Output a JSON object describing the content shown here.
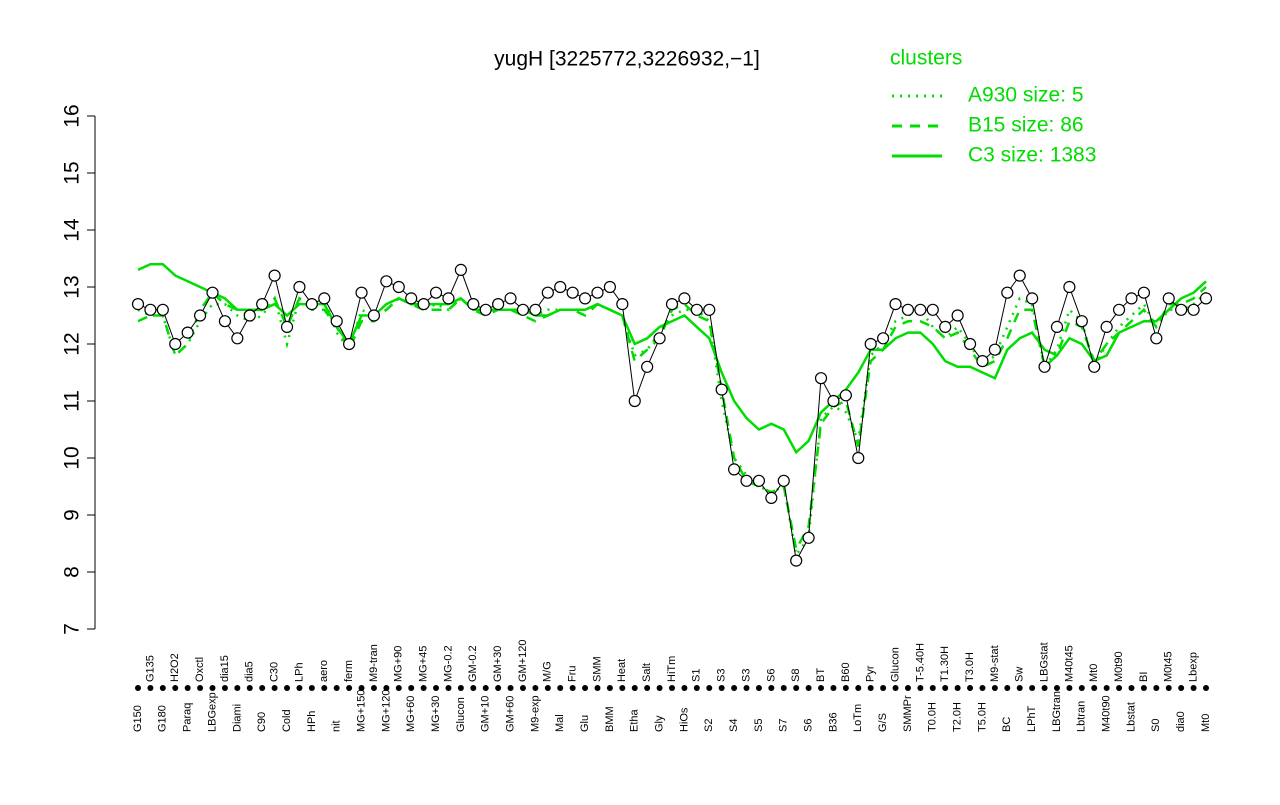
{
  "chart_data": {
    "type": "line",
    "title": "yugH [3225772,3226932,−1]",
    "legend_title": "clusters",
    "legend_position": "top-right",
    "point_color": "#000000",
    "categories": [
      "G150",
      "G135",
      "G180",
      "H2O2",
      "Paraq",
      "Oxctl",
      "LBGexp",
      "dia15",
      "Diami",
      "dia5",
      "C90",
      "C30",
      "Cold",
      "LPh",
      "HPh",
      "aero",
      "nit",
      "ferm",
      "MG+150",
      "M9-tran",
      "MG+120",
      "MG+90",
      "MG+60",
      "MG+45",
      "MG+30",
      "MG-0.2",
      "Glucon",
      "GM-0.2",
      "GM+10",
      "GM+30",
      "GM+60",
      "GM+120",
      "M9-exp",
      "M/G",
      "Mal",
      "Fru",
      "Glu",
      "SMM",
      "BMM",
      "Heat",
      "Etha",
      "Salt",
      "Gly",
      "HiTm",
      "HiOs",
      "S1",
      "S2",
      "S3",
      "S4",
      "S3",
      "S5",
      "S6",
      "S7",
      "S8",
      "S6",
      "BT",
      "B36",
      "B60",
      "LoTm",
      "Pyr",
      "G/S",
      "Glucon",
      "SMMPr",
      "T-5.40H",
      "T0.0H",
      "T1.30H",
      "T2.0H",
      "T3.0H",
      "T5.0H",
      "M9-stat",
      "BC",
      "Sw",
      "LPhT",
      "LBGstat",
      "LBGtran",
      "M40t45",
      "Lbtran",
      "Mt0",
      "M40t90",
      "M0t90",
      "Lbstat",
      "BI",
      "S0",
      "M0t45",
      "dia0",
      "Lbexp",
      "Mt0"
    ],
    "values": [
      12.7,
      12.6,
      12.6,
      12.0,
      12.2,
      12.5,
      12.9,
      12.4,
      12.1,
      12.5,
      12.7,
      13.2,
      12.3,
      13.0,
      12.7,
      12.8,
      12.4,
      12.0,
      12.9,
      12.5,
      13.1,
      13.0,
      12.8,
      12.7,
      12.9,
      12.8,
      13.3,
      12.7,
      12.6,
      12.7,
      12.8,
      12.6,
      12.6,
      12.9,
      13.0,
      12.9,
      12.8,
      12.9,
      13.0,
      12.7,
      11.0,
      11.6,
      12.1,
      12.7,
      12.8,
      12.6,
      12.6,
      11.2,
      9.8,
      9.6,
      9.6,
      9.3,
      9.6,
      8.2,
      8.6,
      11.4,
      11.0,
      11.1,
      10.0,
      12.0,
      12.1,
      12.7,
      12.6,
      12.6,
      12.6,
      12.3,
      12.5,
      12.0,
      11.7,
      11.9,
      12.9,
      13.2,
      12.8,
      11.6,
      12.3,
      13.0,
      12.4,
      11.6,
      12.3,
      12.6,
      12.8,
      12.9,
      12.1,
      12.8,
      12.6,
      12.6,
      12.8
    ],
    "series": [
      {
        "name": "A930 size: 5",
        "color": "#00dd00",
        "style": "dotted",
        "values": [
          12.6,
          12.5,
          12.5,
          11.8,
          12.0,
          12.4,
          12.7,
          12.7,
          12.5,
          12.4,
          12.5,
          12.8,
          12.0,
          12.8,
          12.7,
          12.8,
          12.2,
          11.9,
          12.6,
          12.5,
          12.6,
          12.8,
          12.7,
          12.6,
          12.7,
          12.6,
          12.8,
          12.6,
          12.6,
          12.6,
          12.6,
          12.6,
          12.5,
          12.6,
          12.6,
          12.6,
          12.6,
          12.7,
          12.6,
          12.5,
          11.8,
          11.9,
          12.2,
          12.5,
          12.6,
          12.6,
          12.4,
          11.0,
          10.0,
          9.7,
          9.5,
          9.4,
          9.5,
          8.3,
          8.6,
          10.7,
          10.9,
          10.8,
          10.3,
          11.8,
          12.0,
          12.4,
          12.5,
          12.6,
          12.3,
          12.1,
          12.3,
          12.0,
          11.6,
          11.8,
          12.3,
          12.8,
          12.7,
          11.6,
          11.9,
          12.6,
          12.4,
          11.6,
          12.0,
          12.3,
          12.5,
          12.7,
          12.3,
          12.6,
          12.6,
          12.7,
          12.9
        ]
      },
      {
        "name": "B15 size: 86",
        "color": "#00dd00",
        "style": "dashed",
        "values": [
          12.4,
          12.5,
          12.5,
          11.8,
          12.0,
          12.6,
          12.9,
          12.7,
          12.6,
          12.5,
          12.6,
          12.8,
          12.3,
          12.8,
          12.6,
          12.6,
          12.3,
          11.9,
          12.4,
          12.4,
          12.6,
          12.8,
          12.7,
          12.6,
          12.6,
          12.6,
          12.8,
          12.6,
          12.5,
          12.6,
          12.6,
          12.5,
          12.4,
          12.5,
          12.6,
          12.6,
          12.5,
          12.7,
          12.6,
          12.5,
          11.7,
          11.9,
          12.1,
          12.6,
          12.7,
          12.5,
          12.4,
          11.2,
          10.0,
          9.6,
          9.5,
          9.4,
          9.5,
          8.4,
          8.8,
          10.6,
          10.9,
          11.0,
          10.2,
          11.7,
          11.9,
          12.3,
          12.4,
          12.4,
          12.3,
          12.1,
          12.2,
          11.9,
          11.6,
          11.7,
          12.1,
          12.6,
          12.6,
          11.6,
          11.8,
          12.4,
          12.3,
          11.7,
          12.0,
          12.2,
          12.4,
          12.6,
          12.3,
          12.7,
          12.7,
          12.8,
          13.0
        ]
      },
      {
        "name": "C3 size: 1383",
        "color": "#00dd00",
        "style": "solid",
        "values": [
          13.3,
          13.4,
          13.4,
          13.2,
          13.1,
          13.0,
          12.9,
          12.8,
          12.6,
          12.6,
          12.6,
          12.7,
          12.5,
          12.7,
          12.7,
          12.7,
          12.3,
          12.0,
          12.5,
          12.5,
          12.7,
          12.8,
          12.7,
          12.7,
          12.7,
          12.7,
          12.8,
          12.6,
          12.6,
          12.6,
          12.6,
          12.6,
          12.5,
          12.5,
          12.6,
          12.6,
          12.6,
          12.7,
          12.6,
          12.5,
          12.0,
          12.1,
          12.3,
          12.4,
          12.5,
          12.3,
          12.1,
          11.5,
          11.0,
          10.7,
          10.5,
          10.6,
          10.5,
          10.1,
          10.3,
          10.8,
          11.0,
          11.2,
          11.5,
          11.9,
          11.9,
          12.1,
          12.2,
          12.2,
          12.0,
          11.7,
          11.6,
          11.6,
          11.5,
          11.4,
          11.9,
          12.1,
          12.2,
          11.9,
          11.8,
          12.1,
          12.0,
          11.7,
          11.8,
          12.2,
          12.3,
          12.4,
          12.4,
          12.6,
          12.8,
          12.9,
          13.1
        ]
      }
    ],
    "ylim": [
      7,
      16
    ],
    "yticks": [
      7,
      8,
      9,
      10,
      11,
      12,
      13,
      14,
      15,
      16
    ],
    "grid": false
  }
}
